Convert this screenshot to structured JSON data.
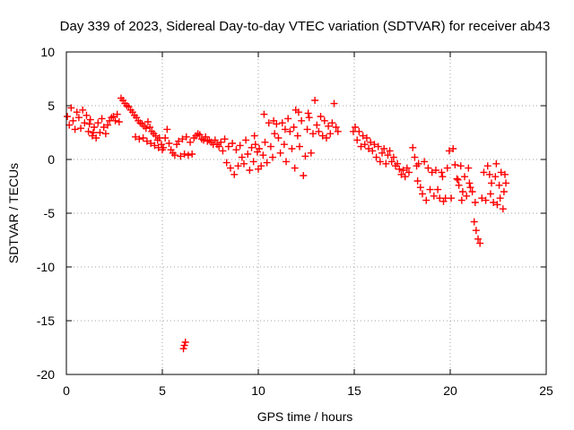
{
  "chart_data": {
    "type": "scatter",
    "title": "Day 339 of 2023, Sidereal Day-to-day VTEC variation (SDTVAR) for receiver ab43",
    "xlabel": "GPS time / hours",
    "ylabel": "SDTVAR / TECUs",
    "xlim": [
      0,
      25
    ],
    "ylim": [
      -20,
      10
    ],
    "xticks": [
      "0",
      "5",
      "10",
      "15",
      "20",
      "25"
    ],
    "yticks": [
      "-20",
      "-15",
      "-10",
      "-5",
      "0",
      "5",
      "10"
    ],
    "grid": true,
    "marker": "+",
    "series_color": "#ff0000",
    "series": [
      {
        "name": "SDTVAR",
        "points": [
          [
            0.05,
            4.0
          ],
          [
            0.15,
            3.2
          ],
          [
            0.25,
            4.8
          ],
          [
            0.35,
            3.6
          ],
          [
            0.45,
            2.8
          ],
          [
            0.55,
            4.4
          ],
          [
            0.65,
            3.9
          ],
          [
            0.75,
            2.9
          ],
          [
            0.85,
            4.6
          ],
          [
            0.95,
            3.4
          ],
          [
            1.05,
            4.1
          ],
          [
            1.15,
            2.6
          ],
          [
            1.25,
            3.7
          ],
          [
            1.35,
            2.2
          ],
          [
            1.45,
            3.0
          ],
          [
            1.55,
            2.0
          ],
          [
            1.65,
            3.4
          ],
          [
            1.75,
            2.5
          ],
          [
            1.85,
            3.8
          ],
          [
            1.95,
            3.0
          ],
          [
            2.05,
            2.4
          ],
          [
            2.15,
            3.2
          ],
          [
            2.25,
            3.6
          ],
          [
            2.35,
            3.9
          ],
          [
            2.45,
            4.0
          ],
          [
            2.55,
            3.6
          ],
          [
            2.65,
            4.2
          ],
          [
            2.75,
            3.5
          ],
          [
            2.85,
            5.7
          ],
          [
            2.95,
            5.5
          ],
          [
            3.05,
            5.2
          ],
          [
            3.15,
            5.0
          ],
          [
            3.25,
            4.9
          ],
          [
            3.35,
            4.6
          ],
          [
            3.45,
            4.4
          ],
          [
            3.55,
            4.1
          ],
          [
            3.65,
            3.9
          ],
          [
            3.75,
            3.6
          ],
          [
            3.85,
            3.4
          ],
          [
            3.95,
            3.3
          ],
          [
            4.05,
            3.1
          ],
          [
            4.15,
            2.9
          ],
          [
            4.25,
            3.5
          ],
          [
            4.35,
            3.0
          ],
          [
            4.45,
            2.6
          ],
          [
            4.55,
            2.4
          ],
          [
            4.65,
            2.2
          ],
          [
            4.75,
            1.8
          ],
          [
            4.85,
            2.0
          ],
          [
            4.95,
            1.4
          ],
          [
            5.05,
            1.1
          ],
          [
            5.15,
            2.0
          ],
          [
            5.25,
            2.8
          ],
          [
            5.35,
            1.5
          ],
          [
            5.45,
            0.9
          ],
          [
            5.55,
            0.6
          ],
          [
            5.65,
            0.4
          ],
          [
            5.75,
            1.4
          ],
          [
            5.85,
            1.7
          ],
          [
            5.95,
            0.3
          ],
          [
            6.05,
            1.9
          ],
          [
            6.15,
            0.5
          ],
          [
            6.25,
            2.1
          ],
          [
            6.35,
            0.4
          ],
          [
            6.45,
            1.6
          ],
          [
            6.55,
            0.5
          ],
          [
            6.65,
            2.0
          ],
          [
            6.75,
            2.2
          ],
          [
            6.85,
            2.4
          ],
          [
            6.95,
            2.3
          ],
          [
            7.05,
            1.9
          ],
          [
            7.15,
            1.8
          ],
          [
            7.25,
            2.1
          ],
          [
            7.35,
            1.7
          ],
          [
            7.45,
            1.8
          ],
          [
            7.55,
            1.6
          ],
          [
            7.65,
            1.4
          ],
          [
            7.75,
            1.8
          ],
          [
            7.85,
            1.4
          ],
          [
            7.95,
            1.2
          ],
          [
            4.0,
            2.0
          ],
          [
            4.2,
            1.7
          ],
          [
            4.4,
            1.5
          ],
          [
            4.6,
            1.3
          ],
          [
            4.8,
            1.1
          ],
          [
            5.0,
            0.9
          ],
          [
            3.6,
            2.1
          ],
          [
            3.8,
            1.9
          ],
          [
            1.2,
            3.3
          ],
          [
            1.4,
            2.5
          ],
          [
            8.05,
            1.6
          ],
          [
            8.15,
            0.8
          ],
          [
            8.25,
            1.9
          ],
          [
            8.35,
            -0.3
          ],
          [
            8.45,
            1.2
          ],
          [
            8.55,
            -0.8
          ],
          [
            8.65,
            1.5
          ],
          [
            8.75,
            -1.4
          ],
          [
            8.85,
            0.9
          ],
          [
            8.95,
            -0.6
          ],
          [
            9.05,
            1.3
          ],
          [
            9.15,
            0.2
          ],
          [
            9.25,
            -0.4
          ],
          [
            9.35,
            1.8
          ],
          [
            9.45,
            0.5
          ],
          [
            9.55,
            -1.0
          ],
          [
            9.65,
            1.1
          ],
          [
            9.75,
            -0.2
          ],
          [
            9.85,
            1.4
          ],
          [
            9.95,
            0.7
          ],
          [
            10.05,
            1.0
          ],
          [
            10.15,
            -0.6
          ],
          [
            10.25,
            0.4
          ],
          [
            10.35,
            1.6
          ],
          [
            10.45,
            -0.3
          ],
          [
            10.55,
            3.4
          ],
          [
            10.65,
            1.2
          ],
          [
            10.75,
            0.2
          ],
          [
            10.85,
            2.4
          ],
          [
            10.95,
            3.3
          ],
          [
            11.05,
            2.0
          ],
          [
            11.15,
            0.6
          ],
          [
            11.25,
            3.4
          ],
          [
            11.35,
            1.4
          ],
          [
            11.45,
            -0.2
          ],
          [
            11.55,
            3.8
          ],
          [
            11.65,
            2.6
          ],
          [
            11.75,
            1.0
          ],
          [
            11.85,
            3.0
          ],
          [
            11.95,
            4.6
          ],
          [
            12.05,
            2.2
          ],
          [
            12.15,
            1.2
          ],
          [
            12.25,
            3.6
          ],
          [
            12.35,
            -1.5
          ],
          [
            12.45,
            0.3
          ],
          [
            12.55,
            2.8
          ],
          [
            12.65,
            3.9
          ],
          [
            12.75,
            0.6
          ],
          [
            12.85,
            2.4
          ],
          [
            12.95,
            5.5
          ],
          [
            13.05,
            3.2
          ],
          [
            13.15,
            2.6
          ],
          [
            13.25,
            4.0
          ],
          [
            13.35,
            2.2
          ],
          [
            13.45,
            3.6
          ],
          [
            13.55,
            2.0
          ],
          [
            13.65,
            3.1
          ],
          [
            13.75,
            2.4
          ],
          [
            13.85,
            3.4
          ],
          [
            13.95,
            5.2
          ],
          [
            14.05,
            3.0
          ],
          [
            14.15,
            2.6
          ],
          [
            10.3,
            4.2
          ],
          [
            10.8,
            3.6
          ],
          [
            12.1,
            4.4
          ],
          [
            12.6,
            4.3
          ],
          [
            11.4,
            2.8
          ],
          [
            9.8,
            2.2
          ],
          [
            10.0,
            -0.9
          ],
          [
            11.9,
            -0.8
          ],
          [
            14.95,
            2.6
          ],
          [
            15.05,
            3.0
          ],
          [
            15.15,
            1.8
          ],
          [
            15.25,
            2.6
          ],
          [
            15.35,
            1.2
          ],
          [
            15.45,
            2.2
          ],
          [
            15.55,
            1.4
          ],
          [
            15.65,
            2.0
          ],
          [
            15.75,
            1.0
          ],
          [
            15.85,
            1.6
          ],
          [
            15.95,
            0.8
          ],
          [
            16.05,
            1.4
          ],
          [
            16.15,
            0.2
          ],
          [
            16.25,
            1.2
          ],
          [
            16.35,
            -0.2
          ],
          [
            16.45,
            0.6
          ],
          [
            16.55,
            1.0
          ],
          [
            16.65,
            -0.4
          ],
          [
            16.75,
            0.4
          ],
          [
            16.85,
            0.8
          ],
          [
            16.95,
            -0.2
          ],
          [
            17.05,
            0.2
          ],
          [
            17.15,
            -0.6
          ],
          [
            17.25,
            -0.4
          ],
          [
            17.35,
            -0.9
          ],
          [
            17.45,
            -1.4
          ],
          [
            17.55,
            -1.0
          ],
          [
            17.65,
            -1.6
          ],
          [
            17.75,
            -0.8
          ],
          [
            17.85,
            -1.2
          ],
          [
            18.05,
            1.1
          ],
          [
            18.15,
            0.2
          ],
          [
            18.25,
            -0.6
          ],
          [
            18.35,
            -0.4
          ],
          [
            18.45,
            -2.6
          ],
          [
            18.55,
            -3.2
          ],
          [
            18.65,
            -0.2
          ],
          [
            18.75,
            -3.8
          ],
          [
            18.85,
            -0.8
          ],
          [
            18.95,
            -2.8
          ],
          [
            19.05,
            -1.2
          ],
          [
            19.15,
            -3.4
          ],
          [
            19.25,
            -1.0
          ],
          [
            19.35,
            -2.8
          ],
          [
            19.45,
            -3.6
          ],
          [
            19.55,
            -1.2
          ],
          [
            19.65,
            -3.9
          ],
          [
            19.75,
            -3.6
          ],
          [
            19.85,
            -0.8
          ],
          [
            19.95,
            0.8
          ],
          [
            20.05,
            -3.6
          ],
          [
            20.15,
            1.0
          ],
          [
            20.25,
            -0.5
          ],
          [
            20.35,
            -1.8
          ],
          [
            20.45,
            -2.4
          ],
          [
            20.55,
            -0.6
          ],
          [
            20.65,
            -3.0
          ],
          [
            20.75,
            -1.6
          ],
          [
            20.85,
            -3.4
          ],
          [
            20.95,
            -0.8
          ],
          [
            21.05,
            -2.6
          ],
          [
            21.15,
            -3.0
          ],
          [
            21.25,
            -5.8
          ],
          [
            21.35,
            -6.6
          ],
          [
            21.45,
            -7.4
          ],
          [
            21.55,
            -7.8
          ],
          [
            21.65,
            -3.6
          ],
          [
            21.75,
            -1.2
          ],
          [
            21.85,
            -3.8
          ],
          [
            21.95,
            -0.6
          ],
          [
            22.05,
            -1.4
          ],
          [
            22.15,
            -2.2
          ],
          [
            22.25,
            -4.0
          ],
          [
            22.35,
            -1.6
          ],
          [
            22.45,
            -4.2
          ],
          [
            22.55,
            -2.4
          ],
          [
            22.65,
            -1.2
          ],
          [
            22.75,
            -4.6
          ],
          [
            22.8,
            -3.0
          ],
          [
            22.85,
            -1.4
          ],
          [
            19.6,
            -1.6
          ],
          [
            20.4,
            -1.9
          ],
          [
            21.0,
            -2.2
          ],
          [
            22.1,
            -3.2
          ],
          [
            22.6,
            -3.6
          ],
          [
            18.3,
            -2.0
          ],
          [
            20.6,
            -3.8
          ],
          [
            22.4,
            -0.4
          ],
          [
            21.3,
            -4.0
          ],
          [
            22.9,
            -2.2
          ],
          [
            6.1,
            -17.6
          ],
          [
            6.2,
            -17.0
          ],
          [
            6.15,
            -17.3
          ]
        ]
      }
    ]
  }
}
